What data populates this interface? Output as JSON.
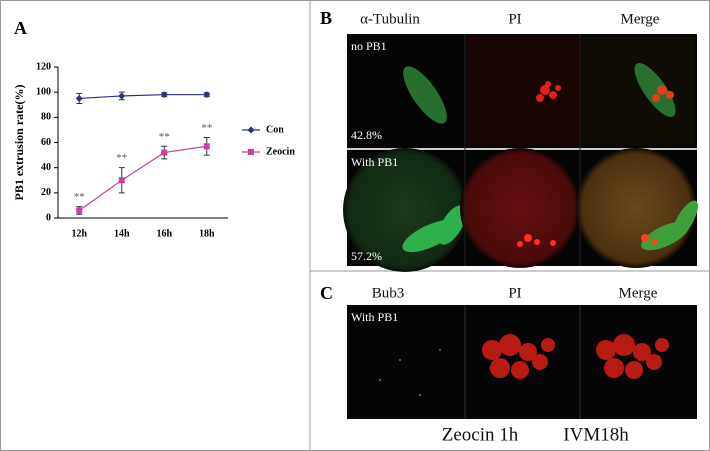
{
  "panel_a": {
    "label": "A"
  },
  "chart_data": {
    "type": "line",
    "categories": [
      "12h",
      "14h",
      "16h",
      "18h"
    ],
    "series": [
      {
        "name": "Con",
        "color": "#2b2f8a",
        "marker": "diamond",
        "values": [
          95,
          97,
          98,
          98
        ],
        "errors": [
          4,
          3,
          1.5,
          1.5
        ]
      },
      {
        "name": "Zeocin",
        "color": "#c8419f",
        "marker": "square",
        "values": [
          6,
          30,
          52,
          57
        ],
        "errors": [
          3,
          10,
          5,
          7
        ],
        "annotations": [
          "**",
          "**",
          "**",
          "**"
        ]
      }
    ],
    "ylabel": "PB1 extrusion rate(%)",
    "ylim": [
      0,
      120
    ],
    "yticks": [
      0,
      20,
      40,
      60,
      80,
      100,
      120
    ],
    "grid": false,
    "legend": "right"
  },
  "panel_b": {
    "label": "B",
    "columns": [
      "α-Tubulin",
      "PI",
      "Merge"
    ],
    "rows": [
      {
        "label": "no PB1",
        "percent": "42.8%"
      },
      {
        "label": "With PB1",
        "percent": "57.2%"
      }
    ]
  },
  "panel_c": {
    "label": "C",
    "columns": [
      "Bub3",
      "PI",
      "Merge"
    ],
    "row_label": "With PB1",
    "caption": [
      "Zeocin 1h",
      "IVM18h"
    ]
  }
}
